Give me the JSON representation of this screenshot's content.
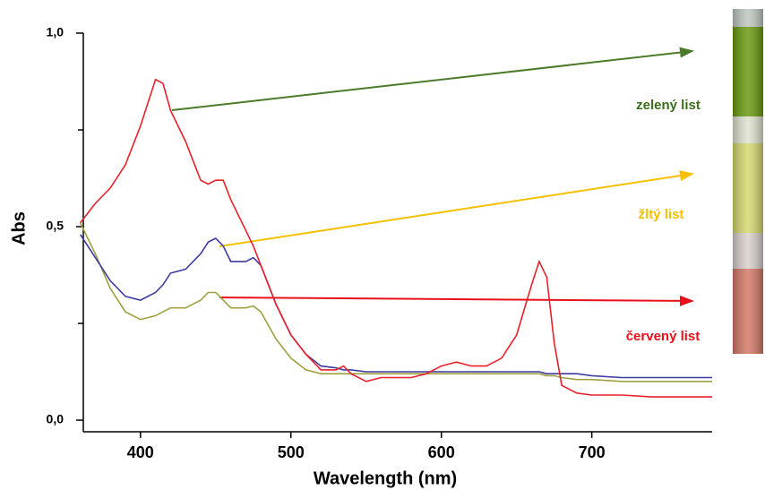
{
  "chart_data": {
    "type": "line",
    "x_label": "Wavelength (nm)",
    "y_label": "Abs",
    "x": [
      360,
      370,
      380,
      390,
      400,
      410,
      415,
      420,
      430,
      440,
      445,
      450,
      455,
      460,
      470,
      475,
      480,
      490,
      500,
      510,
      520,
      530,
      535,
      540,
      550,
      560,
      570,
      580,
      590,
      600,
      610,
      620,
      630,
      640,
      650,
      660,
      665,
      670,
      675,
      680,
      690,
      700,
      720,
      740,
      760,
      780
    ],
    "series": [
      {
        "color": "#e8202a",
        "values": [
          0.51,
          0.56,
          0.6,
          0.66,
          0.76,
          0.88,
          0.87,
          0.8,
          0.72,
          0.62,
          0.61,
          0.62,
          0.62,
          0.57,
          0.49,
          0.45,
          0.4,
          0.3,
          0.22,
          0.17,
          0.13,
          0.13,
          0.14,
          0.12,
          0.1,
          0.11,
          0.11,
          0.11,
          0.12,
          0.14,
          0.15,
          0.14,
          0.14,
          0.16,
          0.22,
          0.35,
          0.41,
          0.37,
          0.2,
          0.09,
          0.07,
          0.065,
          0.065,
          0.06,
          0.06,
          0.06
        ]
      },
      {
        "color": "#3c3ca0",
        "values": [
          0.48,
          0.42,
          0.36,
          0.32,
          0.31,
          0.33,
          0.35,
          0.38,
          0.39,
          0.43,
          0.46,
          0.47,
          0.45,
          0.41,
          0.41,
          0.42,
          0.4,
          0.3,
          0.22,
          0.17,
          0.14,
          0.135,
          0.13,
          0.13,
          0.125,
          0.125,
          0.125,
          0.125,
          0.125,
          0.125,
          0.125,
          0.125,
          0.125,
          0.125,
          0.125,
          0.125,
          0.125,
          0.12,
          0.12,
          0.12,
          0.12,
          0.115,
          0.11,
          0.11,
          0.11,
          0.11
        ]
      },
      {
        "color": "#a0a040",
        "values": [
          0.51,
          0.43,
          0.34,
          0.28,
          0.26,
          0.27,
          0.28,
          0.29,
          0.29,
          0.31,
          0.33,
          0.33,
          0.31,
          0.29,
          0.29,
          0.295,
          0.28,
          0.21,
          0.16,
          0.13,
          0.12,
          0.12,
          0.12,
          0.12,
          0.12,
          0.12,
          0.12,
          0.12,
          0.12,
          0.12,
          0.12,
          0.12,
          0.12,
          0.12,
          0.12,
          0.12,
          0.12,
          0.115,
          0.115,
          0.11,
          0.105,
          0.105,
          0.1,
          0.1,
          0.1,
          0.1
        ]
      }
    ],
    "xlim": [
      362,
      780
    ],
    "ylim": [
      -0.03,
      1.0
    ],
    "xticks": [
      400,
      500,
      600,
      700
    ],
    "yticks": [
      {
        "value": 0,
        "label": "0,0"
      },
      {
        "value": 0.5,
        "label": "0,5"
      },
      {
        "value": 1.0,
        "label": "1,0"
      }
    ],
    "yminorticks": [
      0.25,
      0.75
    ],
    "annotations": [
      {
        "text": "zelený list",
        "color": "#3a6e1a"
      },
      {
        "text": "žltý list",
        "color": "#f5c000"
      },
      {
        "text": "červený list",
        "color": "#e8101a"
      }
    ]
  }
}
